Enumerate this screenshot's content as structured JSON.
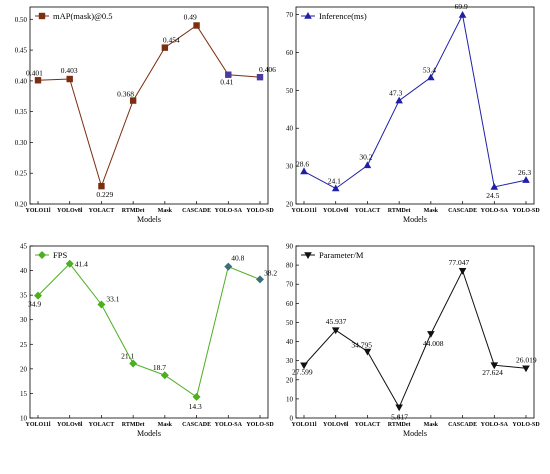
{
  "chart_data": [
    {
      "type": "line",
      "categories": [
        "YOLO11l",
        "YOLOv8l",
        "YOLACT",
        "RTMDet",
        "Mask",
        "CASCADE",
        "YOLO-SA",
        "YOLO-SD"
      ],
      "series": [
        {
          "name": "mAP(mask)@0.5",
          "values": [
            0.401,
            0.403,
            0.229,
            0.368,
            0.454,
            0.49,
            0.41,
            0.406
          ]
        }
      ],
      "data_labels": [
        "0.401",
        "0.403",
        "0.229",
        "0.368",
        "0.454",
        "0.49",
        "0.41",
        "0.406"
      ],
      "xlabel": "Models",
      "ylabel": "",
      "ylim": [
        0.2,
        0.52
      ],
      "yticks": [
        "0.20",
        "0.25",
        "0.30",
        "0.35",
        "0.40",
        "0.45",
        "0.50"
      ],
      "ytick_values": [
        0.2,
        0.25,
        0.3,
        0.35,
        0.4,
        0.45,
        0.5
      ],
      "legend": "top-left",
      "grid": false,
      "color": "#7a2e12",
      "highlight_color": "#4b3aa0",
      "marker": "square"
    },
    {
      "type": "line",
      "categories": [
        "YOLO11l",
        "YOLOv8l",
        "YOLACT",
        "RTMDet",
        "Mask",
        "CASCADE",
        "YOLO-SA",
        "YOLO-SD"
      ],
      "series": [
        {
          "name": "Inference(ms)",
          "values": [
            28.6,
            24.1,
            30.2,
            47.3,
            53.4,
            69.9,
            24.5,
            26.3
          ]
        }
      ],
      "data_labels": [
        "28.6",
        "24.1",
        "30.2",
        "47.3",
        "53.4",
        "69.9",
        "24.5",
        "26.3"
      ],
      "xlabel": "Models",
      "ylabel": "",
      "ylim": [
        20,
        72
      ],
      "yticks": [
        "20",
        "30",
        "40",
        "50",
        "60",
        "70"
      ],
      "ytick_values": [
        20,
        30,
        40,
        50,
        60,
        70
      ],
      "legend": "top-left",
      "grid": false,
      "color": "#1f1fa8",
      "marker": "triangle-up"
    },
    {
      "type": "line",
      "categories": [
        "YOLO11l",
        "YOLOv8l",
        "YOLACT",
        "RTMDet",
        "Mask",
        "CASCADE",
        "YOLO-SA",
        "YOLO-SD"
      ],
      "series": [
        {
          "name": "FPS",
          "values": [
            34.9,
            41.4,
            33.1,
            21.1,
            18.7,
            14.3,
            40.8,
            38.2
          ]
        }
      ],
      "data_labels": [
        "34.9",
        "41.4",
        "33.1",
        "21.1",
        "18.7",
        "14.3",
        "40.8",
        "38.2"
      ],
      "xlabel": "Models",
      "ylabel": "",
      "ylim": [
        10,
        45
      ],
      "yticks": [
        "10",
        "15",
        "20",
        "25",
        "30",
        "35",
        "40",
        "45"
      ],
      "ytick_values": [
        10,
        15,
        20,
        25,
        30,
        35,
        40,
        45
      ],
      "legend": "top-left",
      "grid": false,
      "color": "#4caf20",
      "highlight_color": "#3d6f7a",
      "marker": "diamond"
    },
    {
      "type": "line",
      "categories": [
        "YOLO11l",
        "YOLOv8l",
        "YOLACT",
        "RTMDet",
        "Mask",
        "CASCADE",
        "YOLO-SA",
        "YOLO-SD"
      ],
      "series": [
        {
          "name": "Parameter/M",
          "values": [
            27.599,
            45.937,
            34.795,
            5.617,
            44.008,
            77.047,
            27.624,
            26.019
          ]
        }
      ],
      "data_labels": [
        "27.599",
        "45.937",
        "34.795",
        "5.617",
        "44.008",
        "77.047",
        "27.624",
        "26.019"
      ],
      "xlabel": "Models",
      "ylabel": "",
      "ylim": [
        0,
        90
      ],
      "yticks": [
        "0",
        "10",
        "20",
        "30",
        "40",
        "50",
        "60",
        "70",
        "80",
        "90"
      ],
      "ytick_values": [
        0,
        10,
        20,
        30,
        40,
        50,
        60,
        70,
        80,
        90
      ],
      "legend": "top-left",
      "grid": false,
      "color": "#111111",
      "marker": "triangle-down"
    }
  ]
}
